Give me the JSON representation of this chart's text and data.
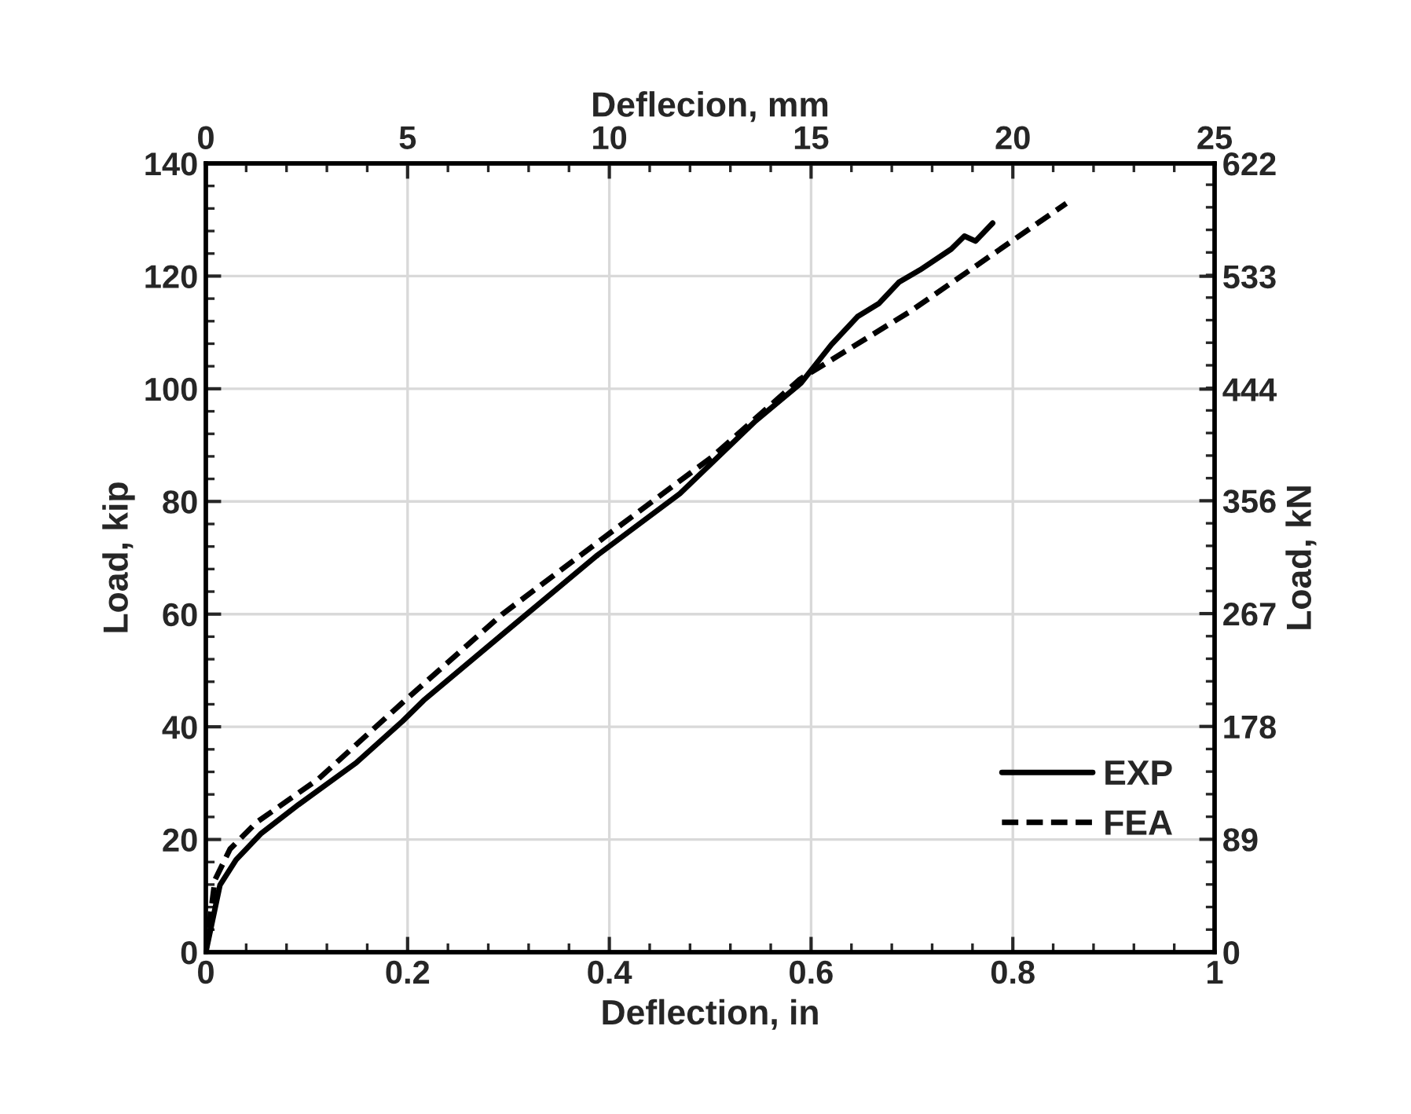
{
  "chart_data": {
    "type": "line",
    "xlabel": "Deflection, in",
    "ylabel": "Load, kip",
    "y2label": "Load, kN",
    "x2label": "Deflecion, mm",
    "xlim": [
      0,
      1
    ],
    "xticks": [
      0,
      0.2,
      0.4,
      0.6,
      0.8,
      1
    ],
    "ylim": [
      0,
      140
    ],
    "yticks": [
      0,
      20,
      40,
      60,
      80,
      100,
      120,
      140
    ],
    "y2lim": [
      0,
      622
    ],
    "y2ticks": [
      0,
      89,
      178,
      267,
      356,
      444,
      533,
      622
    ],
    "x2lim": [
      0,
      25
    ],
    "x2ticks": [
      0,
      5,
      10,
      15,
      20,
      25
    ],
    "grid": true,
    "legend": "bottom right",
    "marker": "none",
    "series": [
      {
        "name": "EXP",
        "color": "#000000",
        "line_style": "solid",
        "x": [
          0,
          0.014,
          0.03,
          0.055,
          0.092,
          0.149,
          0.195,
          0.216,
          0.294,
          0.387,
          0.47,
          0.545,
          0.59,
          0.62,
          0.646,
          0.667,
          0.687,
          0.708,
          0.739,
          0.752,
          0.763,
          0.78
        ],
        "values": [
          0,
          11.9,
          16.4,
          21.1,
          26.2,
          33.6,
          41.0,
          44.7,
          56.4,
          70.3,
          81.4,
          94.3,
          101,
          107.8,
          112.8,
          115.1,
          118.9,
          121.1,
          124.8,
          127.1,
          126.2,
          129.4
        ]
      },
      {
        "name": "FEA",
        "color": "#000000",
        "line_style": "dashed",
        "x": [
          0,
          0.009,
          0.024,
          0.05,
          0.112,
          0.195,
          0.294,
          0.397,
          0.501,
          0.589,
          0.698,
          0.853
        ],
        "values": [
          0,
          12.8,
          18.3,
          23.0,
          30.8,
          44.3,
          60,
          73.9,
          87.8,
          101.7,
          113.7,
          132.9
        ]
      }
    ]
  }
}
